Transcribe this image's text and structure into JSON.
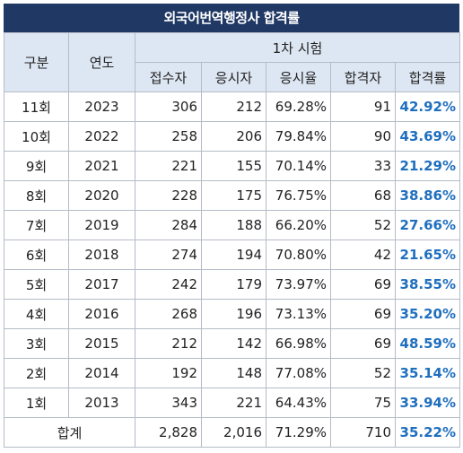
{
  "title": "외국어번역행정사 합격률",
  "header": {
    "division": "구분",
    "year": "연도",
    "round_group": "1차 시험",
    "applicants": "접수자",
    "takers": "응시자",
    "take_rate": "응시율",
    "passers": "합격자",
    "pass_rate": "합격률"
  },
  "rows": [
    {
      "round": "11회",
      "year": "2023",
      "applicants": "306",
      "takers": "212",
      "take_rate": "69.28%",
      "passers": "91",
      "pass_rate": "42.92%"
    },
    {
      "round": "10회",
      "year": "2022",
      "applicants": "258",
      "takers": "206",
      "take_rate": "79.84%",
      "passers": "90",
      "pass_rate": "43.69%"
    },
    {
      "round": "9회",
      "year": "2021",
      "applicants": "221",
      "takers": "155",
      "take_rate": "70.14%",
      "passers": "33",
      "pass_rate": "21.29%"
    },
    {
      "round": "8회",
      "year": "2020",
      "applicants": "228",
      "takers": "175",
      "take_rate": "76.75%",
      "passers": "68",
      "pass_rate": "38.86%"
    },
    {
      "round": "7회",
      "year": "2019",
      "applicants": "284",
      "takers": "188",
      "take_rate": "66.20%",
      "passers": "52",
      "pass_rate": "27.66%"
    },
    {
      "round": "6회",
      "year": "2018",
      "applicants": "274",
      "takers": "194",
      "take_rate": "70.80%",
      "passers": "42",
      "pass_rate": "21.65%"
    },
    {
      "round": "5회",
      "year": "2017",
      "applicants": "242",
      "takers": "179",
      "take_rate": "73.97%",
      "passers": "69",
      "pass_rate": "38.55%"
    },
    {
      "round": "4회",
      "year": "2016",
      "applicants": "268",
      "takers": "196",
      "take_rate": "73.13%",
      "passers": "69",
      "pass_rate": "35.20%"
    },
    {
      "round": "3회",
      "year": "2015",
      "applicants": "212",
      "takers": "142",
      "take_rate": "66.98%",
      "passers": "69",
      "pass_rate": "48.59%"
    },
    {
      "round": "2회",
      "year": "2014",
      "applicants": "192",
      "takers": "148",
      "take_rate": "77.08%",
      "passers": "52",
      "pass_rate": "35.14%"
    },
    {
      "round": "1회",
      "year": "2013",
      "applicants": "343",
      "takers": "221",
      "take_rate": "64.43%",
      "passers": "75",
      "pass_rate": "33.94%"
    }
  ],
  "total": {
    "label": "합계",
    "applicants": "2,828",
    "takers": "2,016",
    "take_rate": "71.29%",
    "passers": "710",
    "pass_rate": "35.22%"
  },
  "colors": {
    "title_bg": "#1f3864",
    "header_bg": "#dde7f3",
    "pass_rate_text": "#1f6fbf",
    "grid_line": "#b4bcc8"
  }
}
